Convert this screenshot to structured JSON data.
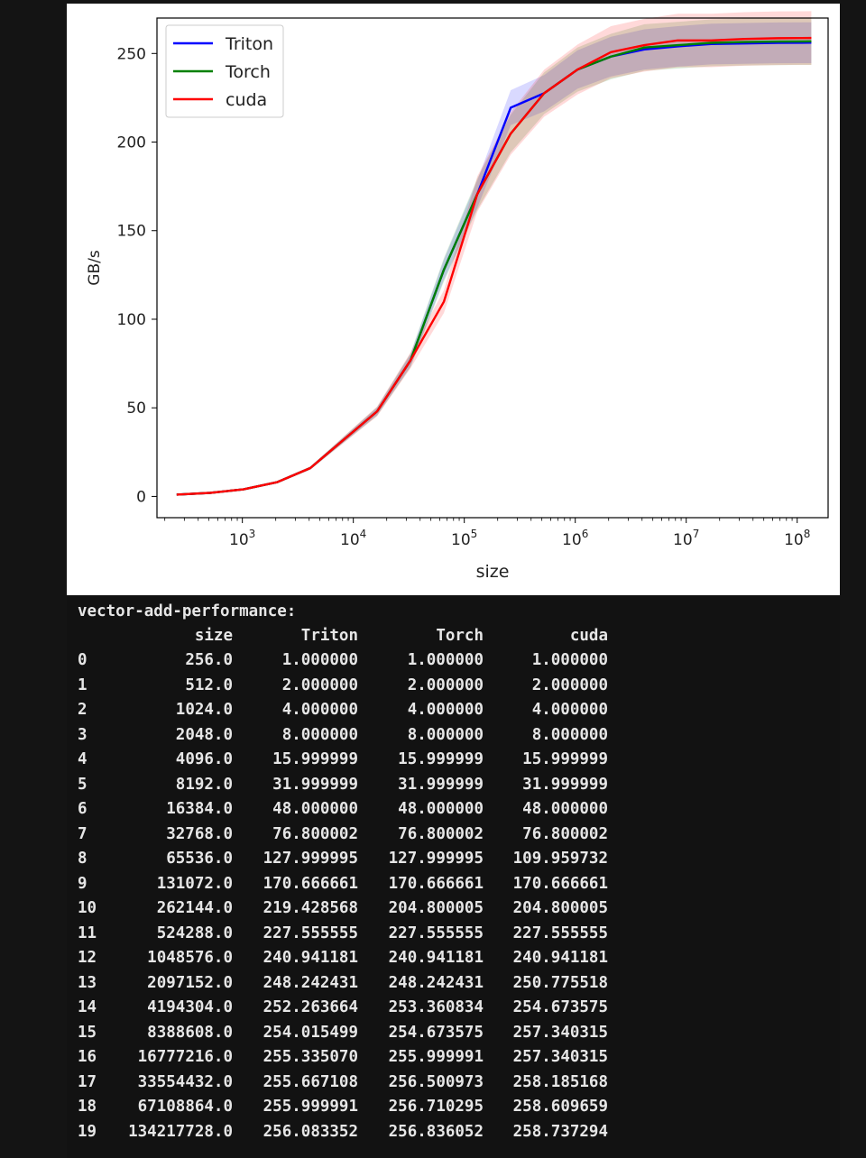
{
  "chart_data": {
    "type": "line",
    "title": "",
    "xlabel": "size",
    "ylabel": "GB/s",
    "xscale": "log",
    "xlim": [
      170,
      190000000
    ],
    "ylim": [
      -12,
      270
    ],
    "yticks": [
      0,
      50,
      100,
      150,
      200,
      250
    ],
    "xticks": [
      {
        "value": 1000,
        "base": "10",
        "exp": "3"
      },
      {
        "value": 10000,
        "base": "10",
        "exp": "4"
      },
      {
        "value": 100000,
        "base": "10",
        "exp": "5"
      },
      {
        "value": 1000000,
        "base": "10",
        "exp": "6"
      },
      {
        "value": 10000000,
        "base": "10",
        "exp": "7"
      },
      {
        "value": 100000000,
        "base": "10",
        "exp": "8"
      }
    ],
    "grid": false,
    "legend_position": "top-left",
    "x": [
      256,
      512,
      1024,
      2048,
      4096,
      8192,
      16384,
      32768,
      65536,
      131072,
      262144,
      524288,
      1048576,
      2097152,
      4194304,
      8388608,
      16777216,
      33554432,
      67108864,
      134217728
    ],
    "series": [
      {
        "name": "Triton",
        "color": "#0000ff",
        "values": [
          1.0,
          2.0,
          4.0,
          8.0,
          15.999999,
          31.999999,
          48.0,
          76.800002,
          127.999995,
          170.666661,
          219.428568,
          227.555555,
          240.941181,
          248.242431,
          252.263664,
          254.015499,
          255.33507,
          255.667108,
          255.999991,
          256.083352
        ]
      },
      {
        "name": "Torch",
        "color": "#008000",
        "values": [
          1.0,
          2.0,
          4.0,
          8.0,
          15.999999,
          31.999999,
          48.0,
          76.800002,
          127.999995,
          170.666661,
          204.800005,
          227.555555,
          240.941181,
          248.242431,
          253.360834,
          254.673575,
          255.999991,
          256.500973,
          256.710295,
          256.836052
        ]
      },
      {
        "name": "cuda",
        "color": "#ff0000",
        "values": [
          1.0,
          2.0,
          4.0,
          8.0,
          15.999999,
          31.999999,
          48.0,
          76.800002,
          109.959732,
          170.666661,
          204.800005,
          227.555555,
          240.941181,
          250.775518,
          254.673575,
          257.340315,
          257.340315,
          258.185168,
          258.609659,
          258.737294
        ]
      }
    ]
  },
  "output": {
    "title": "vector-add-performance:",
    "columns": [
      "",
      "size",
      "Triton",
      "Torch",
      "cuda"
    ],
    "rows": [
      [
        "0",
        "256.0",
        "1.000000",
        "1.000000",
        "1.000000"
      ],
      [
        "1",
        "512.0",
        "2.000000",
        "2.000000",
        "2.000000"
      ],
      [
        "2",
        "1024.0",
        "4.000000",
        "4.000000",
        "4.000000"
      ],
      [
        "3",
        "2048.0",
        "8.000000",
        "8.000000",
        "8.000000"
      ],
      [
        "4",
        "4096.0",
        "15.999999",
        "15.999999",
        "15.999999"
      ],
      [
        "5",
        "8192.0",
        "31.999999",
        "31.999999",
        "31.999999"
      ],
      [
        "6",
        "16384.0",
        "48.000000",
        "48.000000",
        "48.000000"
      ],
      [
        "7",
        "32768.0",
        "76.800002",
        "76.800002",
        "76.800002"
      ],
      [
        "8",
        "65536.0",
        "127.999995",
        "127.999995",
        "109.959732"
      ],
      [
        "9",
        "131072.0",
        "170.666661",
        "170.666661",
        "170.666661"
      ],
      [
        "10",
        "262144.0",
        "219.428568",
        "204.800005",
        "204.800005"
      ],
      [
        "11",
        "524288.0",
        "227.555555",
        "227.555555",
        "227.555555"
      ],
      [
        "12",
        "1048576.0",
        "240.941181",
        "240.941181",
        "240.941181"
      ],
      [
        "13",
        "2097152.0",
        "248.242431",
        "248.242431",
        "250.775518"
      ],
      [
        "14",
        "4194304.0",
        "252.263664",
        "253.360834",
        "254.673575"
      ],
      [
        "15",
        "8388608.0",
        "254.015499",
        "254.673575",
        "257.340315"
      ],
      [
        "16",
        "16777216.0",
        "255.335070",
        "255.999991",
        "257.340315"
      ],
      [
        "17",
        "33554432.0",
        "255.667108",
        "256.500973",
        "258.185168"
      ],
      [
        "18",
        "67108864.0",
        "255.999991",
        "256.710295",
        "258.609659"
      ],
      [
        "19",
        "134217728.0",
        "256.083352",
        "256.836052",
        "258.737294"
      ]
    ]
  }
}
